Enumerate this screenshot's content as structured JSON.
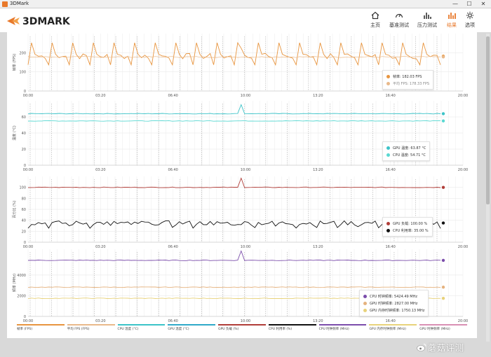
{
  "window": {
    "title": "3DMark",
    "controls": [
      "—",
      "☐",
      "✕"
    ]
  },
  "app": {
    "logo_text": "3DMARK"
  },
  "nav": [
    {
      "label": "主页",
      "icon": "home-icon",
      "active": false
    },
    {
      "label": "基准测试",
      "icon": "gauge-icon",
      "active": false
    },
    {
      "label": "压力测试",
      "icon": "bar-chart-icon",
      "active": false
    },
    {
      "label": "结果",
      "icon": "results-chart-icon",
      "active": true
    },
    {
      "label": "选项",
      "icon": "gear-icon",
      "active": false
    }
  ],
  "colors": {
    "fps": "#e8953f",
    "fps_avg": "#e9b98a",
    "cpu_temp": "#3cc3c8",
    "gpu_temp": "#5ad8d2",
    "gpu_power": "#b03d38",
    "cpu_util": "#111111",
    "cpu_clock": "#7b4dab",
    "gpu_clock": "#e5b27e",
    "gpu_mem_clock": "#e8d27a",
    "grid": "#e6e6e6",
    "marker": "#999999"
  },
  "chart_data": [
    {
      "type": "line",
      "ylabel": "帧率 (FPS)",
      "ylim": [
        0,
        300
      ],
      "yticks": [
        0,
        100,
        200
      ],
      "xticks": [
        "00:00",
        "03:20",
        "06:40",
        "10:00",
        "13:20",
        "16:40",
        "20:00"
      ],
      "series": [
        {
          "name": "帧率",
          "value_label": "帧率: 182.03 FPS",
          "base": 182,
          "kind": "fps"
        },
        {
          "name": "平均 FPS",
          "value_label": "平均 FPS: 178.33 FPS",
          "base": 178,
          "kind": "avg"
        }
      ]
    },
    {
      "type": "line",
      "ylabel": "温度 (°C)",
      "ylim": [
        0,
        80
      ],
      "yticks": [
        0,
        20,
        40,
        60
      ],
      "xticks": [
        "00:00",
        "03:20",
        "06:40",
        "10:00",
        "13:20",
        "16:40",
        "20:00"
      ],
      "series": [
        {
          "name": "GPU 温度",
          "value_label": "GPU 温度: 63.87 °C",
          "base": 64,
          "kind": "flat"
        },
        {
          "name": "CPU 温度",
          "value_label": "CPU 温度: 54.71 °C",
          "base": 55,
          "kind": "flat"
        }
      ]
    },
    {
      "type": "line",
      "ylabel": "百分比 (%)",
      "ylim": [
        0,
        120
      ],
      "yticks": [
        0,
        20,
        40,
        60,
        80,
        100
      ],
      "xticks": [
        "00:00",
        "03:20",
        "06:40",
        "10:00",
        "13:20",
        "16:40",
        "20:00"
      ],
      "series": [
        {
          "name": "GPU 负载",
          "value_label": "GPU 负载: 100.00 %",
          "base": 100,
          "kind": "flat"
        },
        {
          "name": "CPU 利用率",
          "value_label": "CPU 利用率: 35.00 %",
          "base": 35,
          "kind": "noisy"
        }
      ]
    },
    {
      "type": "line",
      "ylabel": "频率 (MHz)",
      "ylim": [
        0,
        6500
      ],
      "yticks": [
        0,
        2000,
        4000
      ],
      "xticks": [
        "00:00",
        "03:20",
        "06:40",
        "10:00",
        "13:20",
        "16:40",
        "20:00"
      ],
      "series": [
        {
          "name": "CPU 时钟频率",
          "value_label": "CPU 时钟频率: 5424.49 MHz",
          "base": 5424,
          "kind": "flat"
        },
        {
          "name": "GPU 时钟频率",
          "value_label": "GPU 时钟频率: 2827.00 MHz",
          "base": 2827,
          "kind": "flat"
        },
        {
          "name": "GPU 内存时钟频率",
          "value_label": "GPU 内存时钟频率: 1750.13 MHz",
          "base": 1750,
          "kind": "flat"
        }
      ]
    }
  ],
  "bottom_legend": [
    {
      "label": "帧率 (FPS)",
      "color": "#e8953f"
    },
    {
      "label": "平均 FPS (FPS)",
      "color": "#e9b98a"
    },
    {
      "label": "CPU 温度 (°C)",
      "color": "#3cc3c8"
    },
    {
      "label": "GPU 温度 (°C)",
      "color": "#2fa9c9"
    },
    {
      "label": "GPU 负载 (%)",
      "color": "#b03d38"
    },
    {
      "label": "CPU 利用率 (%)",
      "color": "#111111"
    },
    {
      "label": "CPU 时钟频率 (MHz)",
      "color": "#7b4dab"
    },
    {
      "label": "GPU 内存时钟频率 (MHz)",
      "color": "#e8d27a"
    },
    {
      "label": "GPU 时钟频率 (MHz)",
      "color": "#d98fb4"
    }
  ],
  "watermark": "蘑菇评测"
}
